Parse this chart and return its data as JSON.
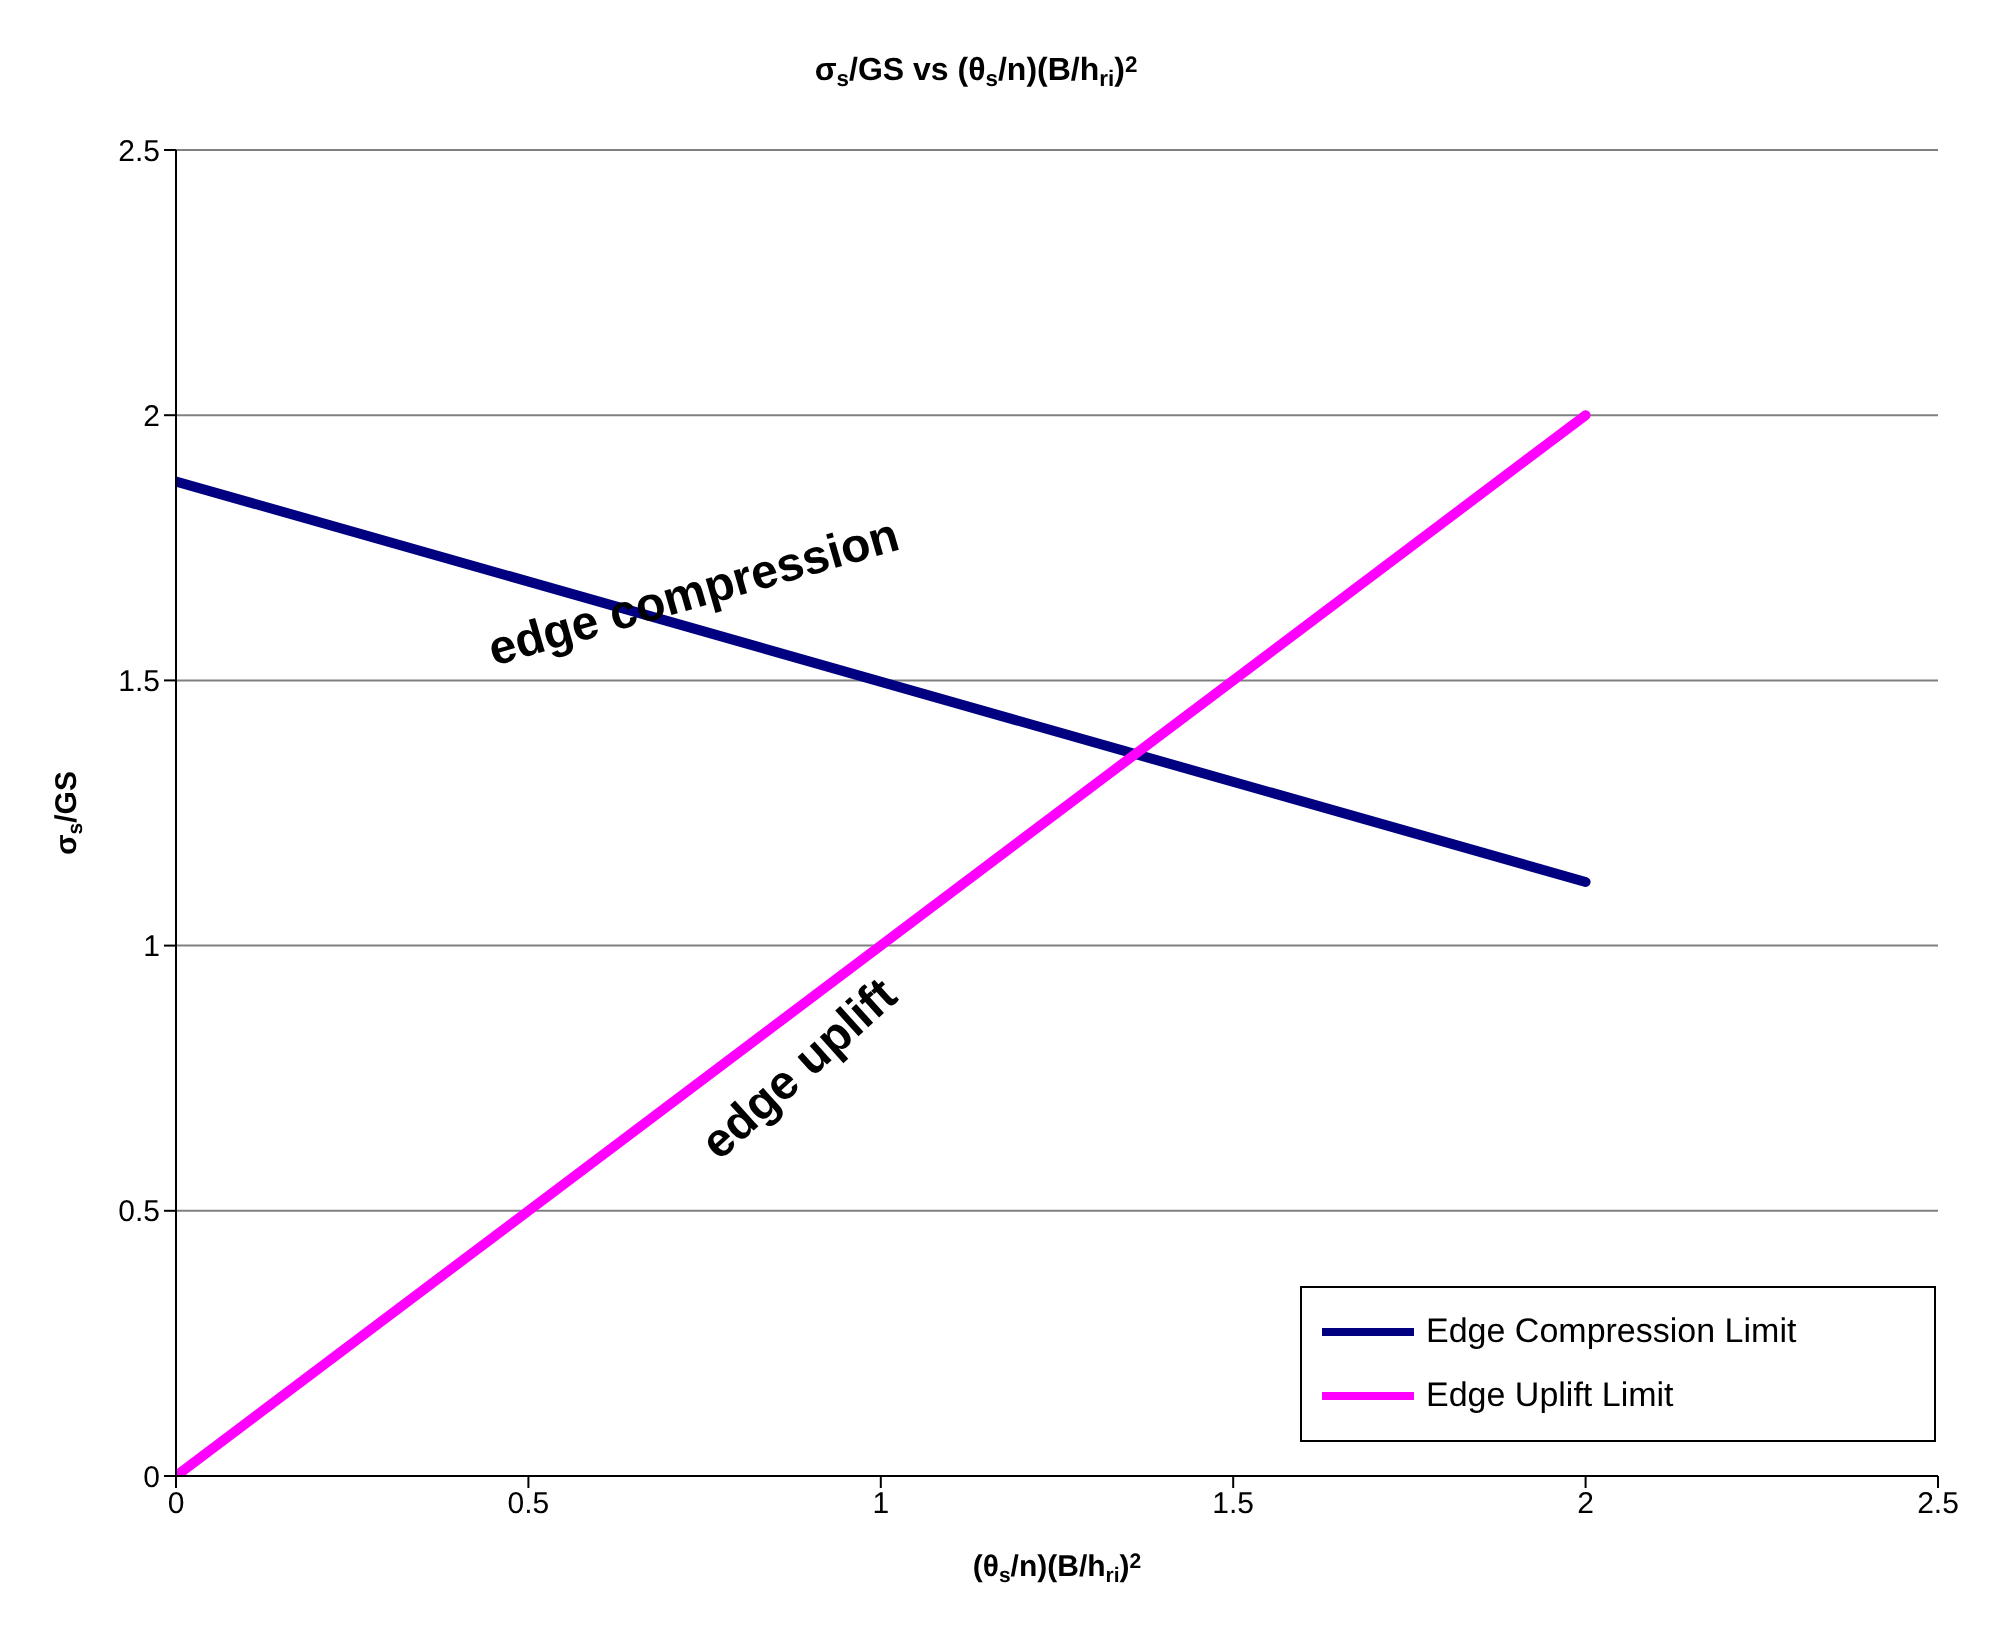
{
  "chart_data": {
    "type": "line",
    "title": "σ$_{s}$/GS vs (θ$_{s}$/n)(B/h$_{ri}$)$^{2}$",
    "xlabel": "(θ$_{s}$/n)(B/h$_{ri}$)$^{2}$",
    "ylabel": "σ$_{s}$/GS",
    "x": [
      0,
      2
    ],
    "series": [
      {
        "name": "Edge Compression Limit",
        "color": "#000080",
        "values": [
          1.875,
          1.12
        ]
      },
      {
        "name": "Edge Uplift Limit",
        "color": "#ff00ff",
        "values": [
          0,
          2
        ]
      }
    ],
    "xlim": [
      0,
      2.5
    ],
    "xticks": [
      0,
      0.5,
      1,
      1.5,
      2,
      2.5
    ],
    "ylim": [
      0,
      2.5
    ],
    "yticks": [
      0,
      0.5,
      1,
      1.5,
      2,
      2.5
    ],
    "grid": "y",
    "legend": "bottom right",
    "marker": "none",
    "line_style": "solid",
    "annotations": [
      "edge compression",
      "edge uplift"
    ]
  }
}
